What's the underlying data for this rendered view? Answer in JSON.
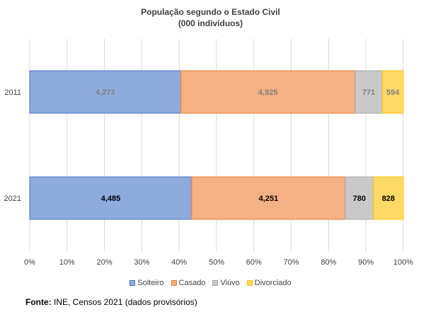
{
  "chart_data": {
    "type": "bar",
    "orientation": "horizontal",
    "stacked": "percent",
    "title": "População segundo o Estado Civil",
    "subtitle": "(000 indivíduos)",
    "categories": [
      "2011",
      "2021"
    ],
    "series": [
      {
        "name": "Solteiro",
        "values": [
          4273,
          4485
        ],
        "labels": [
          "4,273",
          "4,485"
        ],
        "color": "#8faadc",
        "edge": "#4472c4",
        "label_color": "#7f7f7f",
        "label_color_2021": "#000000"
      },
      {
        "name": "Casado",
        "values": [
          4925,
          4251
        ],
        "labels": [
          "4,925",
          "4,251"
        ],
        "color": "#f4b183",
        "edge": "#ed7d31",
        "label_color": "#7f7f7f",
        "label_color_2021": "#000000"
      },
      {
        "name": "Viúvo",
        "values": [
          771,
          780
        ],
        "labels": [
          "771",
          "780"
        ],
        "color": "#c9c9c9",
        "edge": "#a5a5a5",
        "label_color": "#7f7f7f",
        "label_color_2021": "#000000"
      },
      {
        "name": "Divorciado",
        "values": [
          594,
          828
        ],
        "labels": [
          "594",
          "828"
        ],
        "color": "#ffd966",
        "edge": "#ffc000",
        "label_color": "#7f7f7f",
        "label_color_2021": "#000000"
      }
    ],
    "x_ticks": [
      "0%",
      "10%",
      "20%",
      "30%",
      "40%",
      "50%",
      "60%",
      "70%",
      "80%",
      "90%",
      "100%"
    ],
    "xlim": [
      0,
      100
    ],
    "grid": true,
    "legend_position": "bottom"
  },
  "footer": {
    "source_label": "Fonte:",
    "source_text": " INE, Censos 2021 (dados provisórios)"
  }
}
